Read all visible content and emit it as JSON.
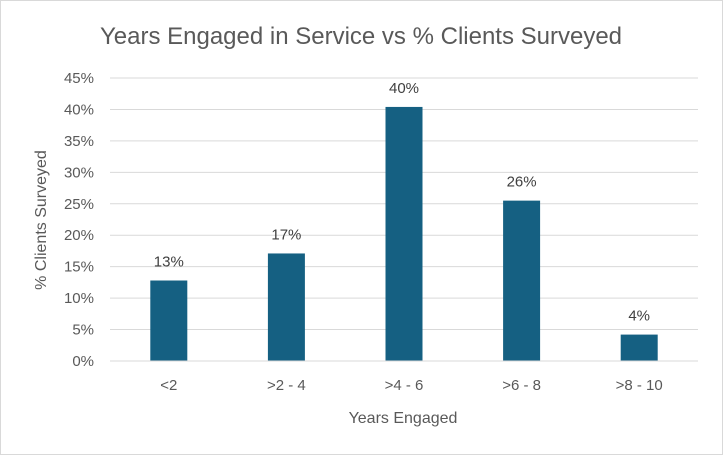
{
  "chart_data": {
    "type": "bar",
    "title": "Years Engaged in Service vs % Clients Surveyed",
    "xlabel": "Years Engaged",
    "ylabel": "% Clients Surveyed",
    "categories": [
      "<2",
      ">2 - 4",
      ">4 - 6",
      ">6 - 8",
      ">8 - 10"
    ],
    "values": [
      0.128,
      0.171,
      0.404,
      0.255,
      0.042
    ],
    "data_labels": [
      "13%",
      "17%",
      "40%",
      "26%",
      "4%"
    ],
    "ylim": [
      0,
      0.45
    ],
    "yticks": [
      0,
      0.05,
      0.1,
      0.15,
      0.2,
      0.25,
      0.3,
      0.35,
      0.4,
      0.45
    ],
    "ytick_labels": [
      "0%",
      "5%",
      "10%",
      "15%",
      "20%",
      "25%",
      "30%",
      "35%",
      "40%",
      "45%"
    ],
    "grid": true,
    "legend": "none",
    "colors": {
      "bar": "#156082",
      "grid": "#d9d9d9",
      "axis": "#d9d9d9",
      "text": "#595959"
    }
  }
}
